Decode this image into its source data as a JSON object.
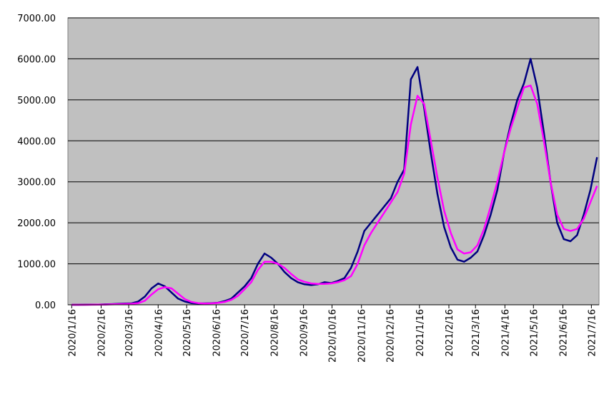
{
  "chart_data": {
    "type": "line",
    "x": [
      "2020/1/16",
      "2020/1/23",
      "2020/1/30",
      "2020/2/6",
      "2020/2/13",
      "2020/2/20",
      "2020/2/27",
      "2020/3/5",
      "2020/3/12",
      "2020/3/19",
      "2020/3/26",
      "2020/4/2",
      "2020/4/9",
      "2020/4/16",
      "2020/4/23",
      "2020/4/30",
      "2020/5/7",
      "2020/5/14",
      "2020/5/21",
      "2020/5/28",
      "2020/6/4",
      "2020/6/11",
      "2020/6/18",
      "2020/6/25",
      "2020/7/2",
      "2020/7/9",
      "2020/7/16",
      "2020/7/23",
      "2020/7/30",
      "2020/8/6",
      "2020/8/13",
      "2020/8/20",
      "2020/8/27",
      "2020/9/3",
      "2020/9/10",
      "2020/9/17",
      "2020/9/24",
      "2020/10/1",
      "2020/10/8",
      "2020/10/15",
      "2020/10/22",
      "2020/10/29",
      "2020/11/5",
      "2020/11/12",
      "2020/11/19",
      "2020/11/26",
      "2020/12/3",
      "2020/12/10",
      "2020/12/17",
      "2020/12/24",
      "2020/12/31",
      "2021/1/7",
      "2021/1/14",
      "2021/1/21",
      "2021/1/28",
      "2021/2/4",
      "2021/2/11",
      "2021/2/18",
      "2021/2/25",
      "2021/3/4",
      "2021/3/11",
      "2021/3/18",
      "2021/3/25",
      "2021/4/1",
      "2021/4/8",
      "2021/4/15",
      "2021/4/22",
      "2021/4/29",
      "2021/5/6",
      "2021/5/13",
      "2021/5/20",
      "2021/5/27",
      "2021/6/3",
      "2021/6/10",
      "2021/6/17",
      "2021/6/24",
      "2021/7/1",
      "2021/7/8",
      "2021/7/15",
      "2021/7/22"
    ],
    "series": [
      {
        "color": "#000080",
        "values": [
          0,
          0,
          2,
          3,
          5,
          10,
          15,
          25,
          30,
          35,
          80,
          200,
          400,
          520,
          450,
          300,
          150,
          80,
          40,
          30,
          35,
          40,
          50,
          90,
          150,
          300,
          450,
          650,
          1000,
          1250,
          1150,
          1000,
          800,
          650,
          550,
          500,
          480,
          500,
          550,
          530,
          580,
          650,
          900,
          1300,
          1800,
          2000,
          2200,
          2400,
          2600,
          3000,
          3300,
          5500,
          5800,
          4800,
          3700,
          2700,
          1900,
          1400,
          1100,
          1050,
          1150,
          1300,
          1700,
          2200,
          2800,
          3700,
          4400,
          5000,
          5400,
          6000,
          5300,
          4200,
          3000,
          2000,
          1600,
          1550,
          1700,
          2200,
          2800,
          3600
        ]
      },
      {
        "color": "#ff00ff",
        "values": [
          0,
          0,
          0,
          1,
          3,
          6,
          10,
          15,
          20,
          25,
          40,
          100,
          250,
          380,
          430,
          400,
          270,
          140,
          70,
          40,
          30,
          35,
          45,
          70,
          120,
          220,
          380,
          550,
          850,
          1050,
          1050,
          1000,
          900,
          750,
          620,
          560,
          520,
          510,
          510,
          520,
          550,
          600,
          700,
          1000,
          1450,
          1750,
          2000,
          2250,
          2500,
          2750,
          3200,
          4400,
          5100,
          4900,
          4000,
          3100,
          2300,
          1750,
          1350,
          1250,
          1280,
          1450,
          1850,
          2400,
          3000,
          3700,
          4300,
          4800,
          5300,
          5350,
          4900,
          4000,
          3000,
          2200,
          1850,
          1800,
          1850,
          2100,
          2500,
          2900
        ]
      }
    ],
    "xlim": [
      "2020/1/12",
      "2021/7/24"
    ],
    "xticks": [
      "2020/1/16",
      "2020/2/16",
      "2020/3/16",
      "2020/4/16",
      "2020/5/16",
      "2020/6/16",
      "2020/7/16",
      "2020/8/16",
      "2020/9/16",
      "2020/10/16",
      "2020/11/16",
      "2020/12/16",
      "2021/1/16",
      "2021/2/16",
      "2021/3/16",
      "2021/4/16",
      "2021/5/16",
      "2021/6/16",
      "2021/7/16"
    ],
    "ylim": [
      0,
      7000
    ],
    "yticks": [
      {
        "value": 0,
        "label": "0.00"
      },
      {
        "value": 1000,
        "label": "1000.00"
      },
      {
        "value": 2000,
        "label": "2000.00"
      },
      {
        "value": 3000,
        "label": "3000.00"
      },
      {
        "value": 4000,
        "label": "4000.00"
      },
      {
        "value": 5000,
        "label": "5000.00"
      },
      {
        "value": 6000,
        "label": "6000.00"
      },
      {
        "value": 7000,
        "label": "7000.00"
      }
    ],
    "grid": true
  }
}
